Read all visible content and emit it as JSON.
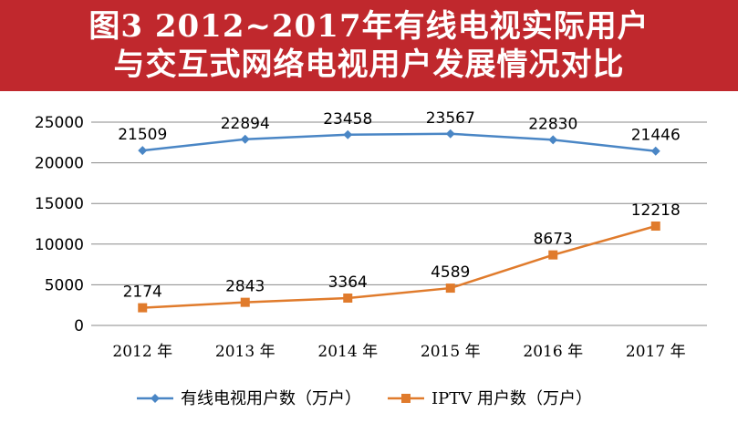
{
  "header": {
    "title_line1": "图3 2012~2017年有线电视实际用户",
    "title_line2": "与交互式网络电视用户发展情况对比"
  },
  "colors": {
    "banner": "#c0282d",
    "series_cable": "#4a86c5",
    "series_iptv": "#e07b2c"
  },
  "chart_data": {
    "type": "line",
    "title": "图3 2012~2017年有线电视实际用户与交互式网络电视用户发展情况对比",
    "categories": [
      "2012 年",
      "2013 年",
      "2014 年",
      "2015 年",
      "2016 年",
      "2017 年"
    ],
    "ylim": [
      0,
      25000
    ],
    "yticks": [
      0,
      5000,
      10000,
      15000,
      20000,
      25000
    ],
    "grid": true,
    "legend_position": "bottom",
    "series": [
      {
        "name": "有线电视用户数（万户）",
        "values": [
          21509,
          22894,
          23458,
          23567,
          22830,
          21446
        ],
        "marker": "diamond",
        "color": "#4a86c5"
      },
      {
        "name": "IPTV 用户数（万户）",
        "values": [
          2174,
          2843,
          3364,
          4589,
          8673,
          12218
        ],
        "marker": "square",
        "color": "#e07b2c"
      }
    ]
  }
}
